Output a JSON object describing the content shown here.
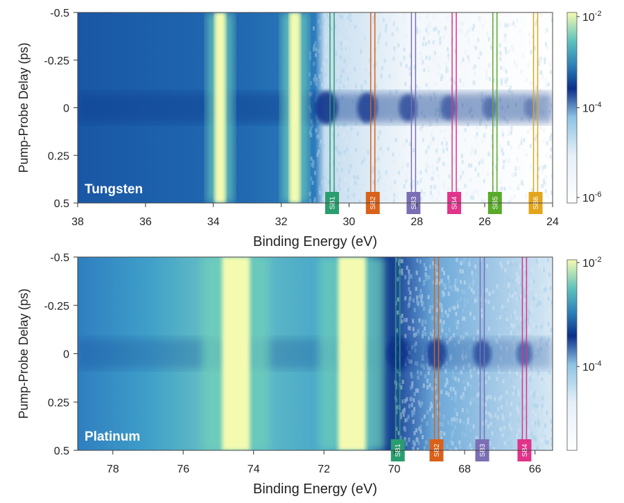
{
  "chart_data": [
    {
      "type": "heatmap",
      "panel_label": "Tungsten",
      "xlabel": "Binding Energy (eV)",
      "ylabel": "Pump-Probe Delay (ps)",
      "xlim": [
        38,
        24
      ],
      "ylim": [
        -0.5,
        0.5
      ],
      "x_ticks": [
        "38",
        "36",
        "34",
        "32",
        "30",
        "28",
        "26",
        "24"
      ],
      "x_tick_values": [
        38,
        36,
        34,
        32,
        30,
        28,
        26,
        24
      ],
      "y_ticks": [
        "-0.5",
        "-0.25",
        "0",
        "0.25",
        "0.5"
      ],
      "y_tick_values": [
        -0.5,
        -0.25,
        0,
        0.25,
        0.5
      ],
      "colorbar": {
        "scale": "log",
        "ticks": [
          "10-2",
          "10-4",
          "10-6"
        ],
        "min": 1e-06,
        "max": 0.01
      },
      "bright_bands_eV": [
        33.8,
        31.6
      ],
      "sidebands": [
        {
          "label": "SB1",
          "energy": 30.5,
          "color": "#2a9d6e"
        },
        {
          "label": "SB2",
          "energy": 29.3,
          "color": "#d9611a"
        },
        {
          "label": "SB3",
          "energy": 28.1,
          "color": "#7a6fb5"
        },
        {
          "label": "SB4",
          "energy": 26.9,
          "color": "#e0338a"
        },
        {
          "label": "SB5",
          "energy": 25.7,
          "color": "#5aaa2a"
        },
        {
          "label": "SB6",
          "energy": 24.5,
          "color": "#e3a51a"
        }
      ]
    },
    {
      "type": "heatmap",
      "panel_label": "Platinum",
      "xlabel": "Binding Energy (eV)",
      "ylabel": "Pump-Probe Delay (ps)",
      "xlim": [
        79,
        65.5
      ],
      "ylim": [
        -0.5,
        0.5
      ],
      "x_ticks": [
        "78",
        "76",
        "74",
        "72",
        "70",
        "68",
        "66"
      ],
      "x_tick_values": [
        78,
        76,
        74,
        72,
        70,
        68,
        66
      ],
      "y_ticks": [
        "-0.5",
        "-0.25",
        "0",
        "0.25",
        "0.5"
      ],
      "y_tick_values": [
        -0.5,
        -0.25,
        0,
        0.25,
        0.5
      ],
      "colorbar": {
        "scale": "log",
        "ticks": [
          "10-2",
          "10-4"
        ],
        "min": 1e-05,
        "max": 0.01
      },
      "bright_bands_eV": [
        74.5,
        71.2
      ],
      "sidebands": [
        {
          "label": "SB1",
          "energy": 69.9,
          "color": "#2a9d6e"
        },
        {
          "label": "SB2",
          "energy": 68.8,
          "color": "#d9611a"
        },
        {
          "label": "SB3",
          "energy": 67.5,
          "color": "#7a6fb5"
        },
        {
          "label": "SB4",
          "energy": 66.3,
          "color": "#e0338a"
        }
      ]
    }
  ]
}
